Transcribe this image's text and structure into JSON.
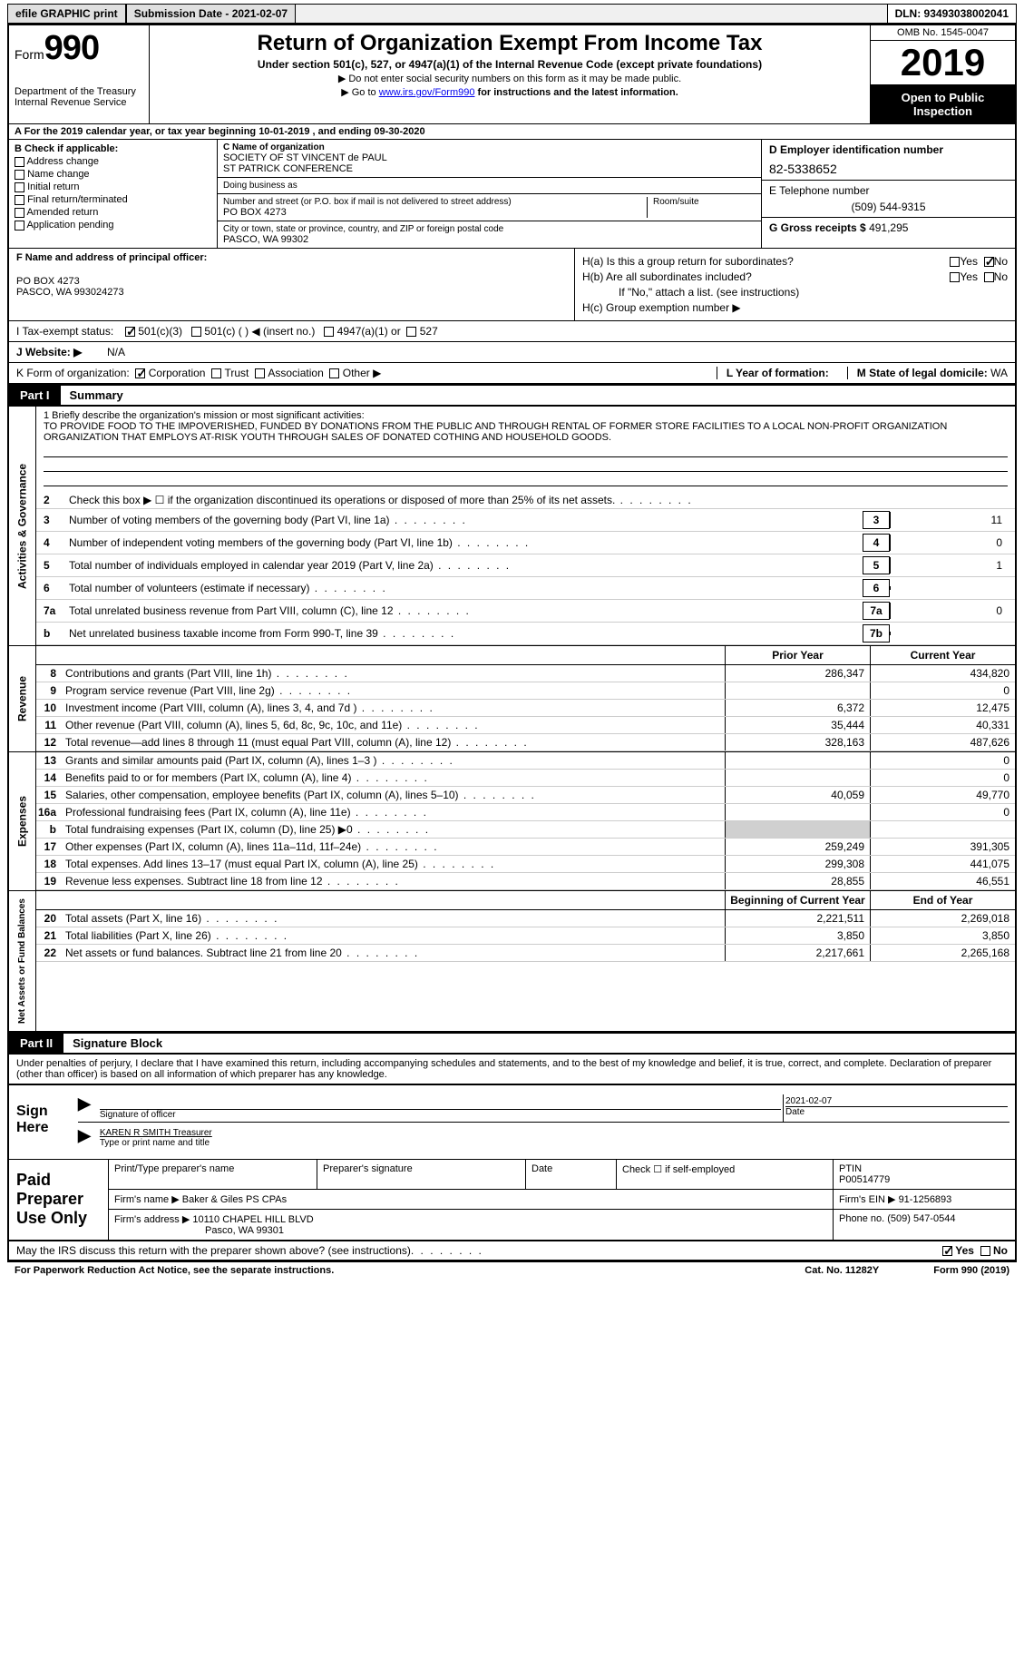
{
  "topbar": {
    "efile": "efile GRAPHIC print",
    "submission": "Submission Date - 2021-02-07",
    "dln": "DLN: 93493038002041"
  },
  "header": {
    "form_prefix": "Form",
    "form_number": "990",
    "dept": "Department of the Treasury\nInternal Revenue Service",
    "title": "Return of Organization Exempt From Income Tax",
    "sub": "Under section 501(c), 527, or 4947(a)(1) of the Internal Revenue Code (except private foundations)",
    "note1": "▶ Do not enter social security numbers on this form as it may be made public.",
    "note2_pre": "▶ Go to ",
    "note2_link": "www.irs.gov/Form990",
    "note2_post": " for instructions and the latest information.",
    "omb": "OMB No. 1545-0047",
    "year": "2019",
    "open": "Open to Public Inspection"
  },
  "period": "A For the 2019 calendar year, or tax year beginning 10-01-2019    , and ending 09-30-2020",
  "box_b": {
    "title": "B Check if applicable:",
    "items": [
      "Address change",
      "Name change",
      "Initial return",
      "Final return/terminated",
      "Amended return",
      "Application pending"
    ]
  },
  "box_c": {
    "label": "C Name of organization",
    "name1": "SOCIETY OF ST VINCENT de PAUL",
    "name2": "ST PATRICK CONFERENCE",
    "dba_label": "Doing business as",
    "addr_label": "Number and street (or P.O. box if mail is not delivered to street address)",
    "room_label": "Room/suite",
    "addr": "PO BOX 4273",
    "city_label": "City or town, state or province, country, and ZIP or foreign postal code",
    "city": "PASCO, WA  99302"
  },
  "box_d": {
    "label": "D Employer identification number",
    "ein": "82-5338652",
    "tel_label": "E Telephone number",
    "tel": "(509) 544-9315",
    "gross_label": "G Gross receipts $",
    "gross": "491,295"
  },
  "box_f": {
    "label": "F Name and address of principal officer:",
    "addr1": "PO BOX 4273",
    "addr2": "PASCO, WA  993024273"
  },
  "box_h": {
    "a_label": "H(a)  Is this a group return for subordinates?",
    "a_yes": "Yes",
    "a_no": "No",
    "b_label": "H(b)  Are all subordinates included?",
    "b_note": "If \"No,\" attach a list. (see instructions)",
    "c_label": "H(c)  Group exemption number ▶"
  },
  "tax_exempt": {
    "label": "I   Tax-exempt status:",
    "opts": [
      "501(c)(3)",
      "501(c) (  ) ◀ (insert no.)",
      "4947(a)(1) or",
      "527"
    ]
  },
  "website": {
    "label": "J   Website: ▶",
    "value": "N/A"
  },
  "korg": {
    "label": "K Form of organization:",
    "opts": [
      "Corporation",
      "Trust",
      "Association",
      "Other ▶"
    ],
    "year_label": "L Year of formation:",
    "state_label": "M State of legal domicile:",
    "state": "WA"
  },
  "part1": {
    "label": "Part I",
    "title": "Summary"
  },
  "mission": {
    "line1_label": "1   Briefly describe the organization's mission or most significant activities:",
    "text": "TO PROVIDE FOOD TO THE IMPOVERISHED, FUNDED BY DONATIONS FROM THE PUBLIC AND THROUGH RENTAL OF FORMER STORE FACILITIES TO A LOCAL NON-PROFIT ORGANIZATION ORGANIZATION THAT EMPLOYS AT-RISK YOUTH THROUGH SALES OF DONATED COTHING AND HOUSEHOLD GOODS."
  },
  "gov_lines": [
    {
      "n": "2",
      "t": "Check this box ▶ ☐  if the organization discontinued its operations or disposed of more than 25% of its net assets.",
      "box": "",
      "v": ""
    },
    {
      "n": "3",
      "t": "Number of voting members of the governing body (Part VI, line 1a)",
      "box": "3",
      "v": "11"
    },
    {
      "n": "4",
      "t": "Number of independent voting members of the governing body (Part VI, line 1b)",
      "box": "4",
      "v": "0"
    },
    {
      "n": "5",
      "t": "Total number of individuals employed in calendar year 2019 (Part V, line 2a)",
      "box": "5",
      "v": "1"
    },
    {
      "n": "6",
      "t": "Total number of volunteers (estimate if necessary)",
      "box": "6",
      "v": ""
    },
    {
      "n": "7a",
      "t": "Total unrelated business revenue from Part VIII, column (C), line 12",
      "box": "7a",
      "v": "0"
    },
    {
      "n": "b",
      "t": "Net unrelated business taxable income from Form 990-T, line 39",
      "box": "7b",
      "v": ""
    }
  ],
  "col_headers": {
    "prior": "Prior Year",
    "current": "Current Year"
  },
  "revenue": [
    {
      "n": "8",
      "t": "Contributions and grants (Part VIII, line 1h)",
      "p": "286,347",
      "c": "434,820"
    },
    {
      "n": "9",
      "t": "Program service revenue (Part VIII, line 2g)",
      "p": "",
      "c": "0"
    },
    {
      "n": "10",
      "t": "Investment income (Part VIII, column (A), lines 3, 4, and 7d )",
      "p": "6,372",
      "c": "12,475"
    },
    {
      "n": "11",
      "t": "Other revenue (Part VIII, column (A), lines 5, 6d, 8c, 9c, 10c, and 11e)",
      "p": "35,444",
      "c": "40,331"
    },
    {
      "n": "12",
      "t": "Total revenue—add lines 8 through 11 (must equal Part VIII, column (A), line 12)",
      "p": "328,163",
      "c": "487,626"
    }
  ],
  "expenses": [
    {
      "n": "13",
      "t": "Grants and similar amounts paid (Part IX, column (A), lines 1–3 )",
      "p": "",
      "c": "0"
    },
    {
      "n": "14",
      "t": "Benefits paid to or for members (Part IX, column (A), line 4)",
      "p": "",
      "c": "0"
    },
    {
      "n": "15",
      "t": "Salaries, other compensation, employee benefits (Part IX, column (A), lines 5–10)",
      "p": "40,059",
      "c": "49,770"
    },
    {
      "n": "16a",
      "t": "Professional fundraising fees (Part IX, column (A), line 11e)",
      "p": "",
      "c": "0"
    },
    {
      "n": "b",
      "t": "Total fundraising expenses (Part IX, column (D), line 25) ▶0",
      "p": "shade",
      "c": "shade"
    },
    {
      "n": "17",
      "t": "Other expenses (Part IX, column (A), lines 11a–11d, 11f–24e)",
      "p": "259,249",
      "c": "391,305"
    },
    {
      "n": "18",
      "t": "Total expenses. Add lines 13–17 (must equal Part IX, column (A), line 25)",
      "p": "299,308",
      "c": "441,075"
    },
    {
      "n": "19",
      "t": "Revenue less expenses. Subtract line 18 from line 12",
      "p": "28,855",
      "c": "46,551"
    }
  ],
  "net_headers": {
    "begin": "Beginning of Current Year",
    "end": "End of Year"
  },
  "netassets": [
    {
      "n": "20",
      "t": "Total assets (Part X, line 16)",
      "p": "2,221,511",
      "c": "2,269,018"
    },
    {
      "n": "21",
      "t": "Total liabilities (Part X, line 26)",
      "p": "3,850",
      "c": "3,850"
    },
    {
      "n": "22",
      "t": "Net assets or fund balances. Subtract line 21 from line 20",
      "p": "2,217,661",
      "c": "2,265,168"
    }
  ],
  "part2": {
    "label": "Part II",
    "title": "Signature Block"
  },
  "sig_text": "Under penalties of perjury, I declare that I have examined this return, including accompanying schedules and statements, and to the best of my knowledge and belief, it is true, correct, and complete. Declaration of preparer (other than officer) is based on all information of which preparer has any knowledge.",
  "sign": {
    "label": "Sign Here",
    "sig_of_officer": "Signature of officer",
    "date": "2021-02-07",
    "date_label": "Date",
    "name": "KAREN R SMITH  Treasurer",
    "name_label": "Type or print name and title"
  },
  "preparer": {
    "label": "Paid Preparer Use Only",
    "h1": "Print/Type preparer's name",
    "h2": "Preparer's signature",
    "h3": "Date",
    "h4_check": "Check ☐ if self-employed",
    "h5_label": "PTIN",
    "ptin": "P00514779",
    "firm_name_label": "Firm's name    ▶",
    "firm_name": "Baker & Giles PS CPAs",
    "firm_ein_label": "Firm's EIN ▶",
    "firm_ein": "91-1256893",
    "firm_addr_label": "Firm's address ▶",
    "firm_addr1": "10110 CHAPEL HILL BLVD",
    "firm_addr2": "Pasco, WA  99301",
    "phone_label": "Phone no.",
    "phone": "(509) 547-0544"
  },
  "discuss": {
    "text": "May the IRS discuss this return with the preparer shown above? (see instructions)",
    "yes": "Yes",
    "no": "No"
  },
  "footer": {
    "left": "For Paperwork Reduction Act Notice, see the separate instructions.",
    "mid": "Cat. No. 11282Y",
    "right": "Form 990 (2019)"
  },
  "side_labels": {
    "gov": "Activities & Governance",
    "rev": "Revenue",
    "exp": "Expenses",
    "net": "Net Assets or Fund Balances"
  }
}
